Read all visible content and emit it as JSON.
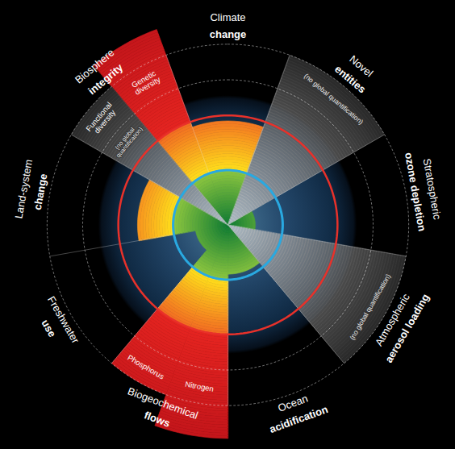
{
  "chart_data": {
    "type": "polar",
    "rlim": [
      0,
      4.1
    ],
    "rticks": [
      1,
      2,
      2.65,
      3.3
    ],
    "grid": true,
    "tick_labels": false,
    "safe_boundary": 1,
    "high_risk_boundary": 2,
    "sectors": [
      {
        "label": [
          "Climate",
          "change"
        ],
        "segments": [
          {
            "value": 1.9
          }
        ]
      },
      {
        "label": [
          "Novel",
          "entities"
        ],
        "segments": [
          {
            "value": 3.3,
            "note": "(no global quantification)"
          }
        ]
      },
      {
        "label": [
          "Stratospheric",
          "ozone depletion"
        ],
        "segments": [
          {
            "value": 0.5
          }
        ]
      },
      {
        "label": [
          "Atmospheric",
          "aerosol loading"
        ],
        "segments": [
          {
            "value": 3.3,
            "note": "(no global quantification)"
          }
        ]
      },
      {
        "label": [
          "Ocean",
          "acidification"
        ],
        "segments": [
          {
            "value": 0.9
          }
        ]
      },
      {
        "label": [
          "Biogeochemical",
          "flows"
        ],
        "segments": [
          {
            "name": "Nitrogen",
            "value": 3.9
          },
          {
            "name": "Phosphorus",
            "value": 3.3
          }
        ]
      },
      {
        "label": [
          "Freshwater",
          "use"
        ],
        "segments": [
          {
            "value": 0.6
          }
        ]
      },
      {
        "label": [
          "Land-system",
          "change"
        ],
        "segments": [
          {
            "value": 1.65
          }
        ]
      },
      {
        "label": [
          "Biosphere",
          "integrity"
        ],
        "segments": [
          {
            "name": "Functional diversity",
            "value": 3.3,
            "note": "(no global quantification)"
          },
          {
            "name": "Genetic diversity",
            "value": 3.8
          }
        ]
      }
    ]
  }
}
